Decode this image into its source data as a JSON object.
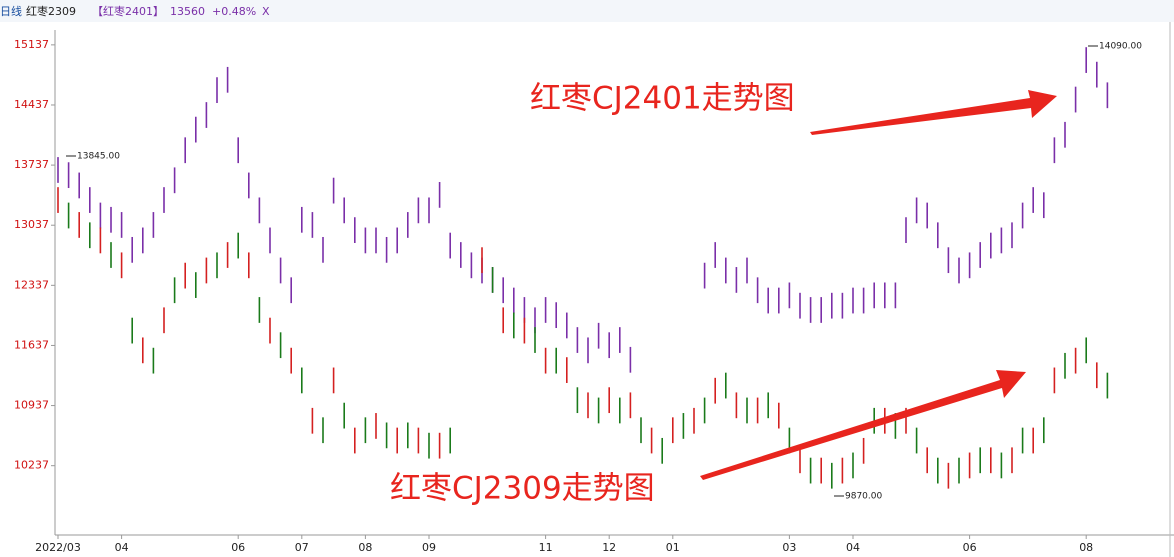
{
  "toolbar": {
    "period": "日线",
    "main": "红枣2309",
    "overlay": "【红枣2401】",
    "price": "13560",
    "change": "+0.48%",
    "close": "X"
  },
  "chart_data": {
    "type": "ohlc",
    "annotations": [
      "红枣CJ2401走势图",
      "红枣CJ2309走势图",
      "14090.00",
      "13845.00",
      "9870.00"
    ],
    "categories": [
      "2022/03",
      null,
      null,
      null,
      null,
      null,
      "04",
      null,
      null,
      null,
      null,
      null,
      null,
      null,
      null,
      null,
      null,
      "06",
      null,
      null,
      null,
      null,
      null,
      "07",
      null,
      null,
      null,
      null,
      null,
      "08",
      null,
      null,
      null,
      null,
      null,
      "09",
      null,
      null,
      null,
      null,
      null,
      null,
      null,
      null,
      null,
      null,
      "11",
      null,
      null,
      null,
      null,
      null,
      "12",
      null,
      null,
      null,
      null,
      null,
      "01",
      null,
      null,
      null,
      null,
      null,
      null,
      null,
      null,
      null,
      null,
      "03",
      null,
      null,
      null,
      null,
      null,
      "04",
      null,
      null,
      null,
      null,
      null,
      null,
      null,
      null,
      null,
      null,
      "06",
      null,
      null,
      null,
      null,
      null,
      null,
      null,
      null,
      null,
      null,
      "08",
      null,
      null
    ],
    "series": [
      {
        "color": "#7a2fa8",
        "high": [
          13830,
          13770,
          13650,
          13480,
          13300,
          13250,
          13190,
          12900,
          13010,
          13190,
          13480,
          13710,
          14060,
          14300,
          14470,
          14760,
          14880,
          14060,
          13650,
          13360,
          13010,
          12660,
          12430,
          13250,
          13190,
          12900,
          13590,
          13360,
          13130,
          13010,
          13010,
          12900,
          13010,
          13190,
          13360,
          13360,
          13540,
          12950,
          12840,
          12720,
          12660,
          12550,
          12430,
          12310,
          12200,
          12080,
          12200,
          12140,
          12020,
          11850,
          11730,
          11900,
          11790,
          11850,
          11620,
          null,
          null,
          null,
          null,
          null,
          null,
          12600,
          12840,
          12660,
          12550,
          12660,
          12430,
          12310,
          12310,
          12370,
          12250,
          12200,
          12200,
          12250,
          12250,
          12310,
          12310,
          12370,
          12370,
          12370,
          13130,
          13360,
          13300,
          13070,
          12780,
          12660,
          12720,
          12840,
          12950,
          13010,
          13070,
          13300,
          13480,
          13420,
          14060,
          14240,
          14650,
          15110,
          14940,
          14700
        ],
        "low": [
          13530,
          13470,
          13350,
          13180,
          13000,
          12950,
          12890,
          12600,
          12710,
          12890,
          13180,
          13410,
          13760,
          14000,
          14170,
          14460,
          14580,
          13760,
          13350,
          13060,
          12710,
          12360,
          12130,
          12950,
          12890,
          12600,
          13290,
          13060,
          12830,
          12710,
          12710,
          12600,
          12710,
          12890,
          13060,
          13060,
          13240,
          12650,
          12540,
          12420,
          12360,
          12250,
          12130,
          12010,
          11900,
          11780,
          11900,
          11840,
          11720,
          11550,
          11430,
          11600,
          11490,
          11550,
          11320,
          null,
          null,
          null,
          null,
          null,
          null,
          12300,
          12540,
          12360,
          12250,
          12360,
          12130,
          12010,
          12010,
          12070,
          11950,
          11900,
          11900,
          11950,
          11950,
          12010,
          12010,
          12070,
          12070,
          12070,
          12830,
          13060,
          13000,
          12770,
          12480,
          12360,
          12420,
          12540,
          12650,
          12710,
          12770,
          13000,
          13180,
          13120,
          13760,
          13940,
          14350,
          14810,
          14640,
          14400
        ]
      },
      {
        "colors": [
          "#d42020",
          "#1a7a1a"
        ],
        "high": [
          13480,
          13300,
          13190,
          13070,
          13010,
          12840,
          12720,
          11960,
          11730,
          11610,
          12080,
          12430,
          12600,
          12490,
          12660,
          12720,
          12840,
          12950,
          12720,
          12200,
          11960,
          11790,
          11610,
          11380,
          10910,
          10800,
          11380,
          10970,
          10680,
          10800,
          10850,
          10740,
          10680,
          10740,
          10680,
          10620,
          10620,
          10680,
          null,
          null,
          12780,
          12550,
          12080,
          12020,
          11960,
          11850,
          11610,
          11610,
          11500,
          11150,
          11090,
          11030,
          11150,
          11030,
          11090,
          10800,
          10680,
          10560,
          10800,
          10850,
          10910,
          11030,
          11260,
          11320,
          11090,
          11030,
          11030,
          11090,
          10970,
          10680,
          10450,
          10330,
          10330,
          10270,
          10330,
          10390,
          10560,
          10910,
          10910,
          10850,
          10910,
          10680,
          10450,
          10330,
          10270,
          10330,
          10390,
          10450,
          10450,
          10390,
          10450,
          10680,
          10680,
          10800,
          11380,
          11550,
          11610,
          11730,
          11440,
          11320
        ],
        "low": [
          13180,
          13000,
          12890,
          12770,
          12710,
          12540,
          12420,
          11660,
          11430,
          11310,
          11780,
          12130,
          12300,
          12190,
          12360,
          12420,
          12540,
          12650,
          12420,
          11900,
          11660,
          11490,
          11310,
          11080,
          10610,
          10500,
          11080,
          10670,
          10380,
          10500,
          10550,
          10440,
          10380,
          10440,
          10380,
          10320,
          10320,
          10380,
          null,
          null,
          12480,
          12250,
          11780,
          11720,
          11660,
          11550,
          11310,
          11310,
          11200,
          10850,
          10790,
          10730,
          10850,
          10730,
          10790,
          10500,
          10380,
          10260,
          10500,
          10550,
          10610,
          10730,
          10960,
          11020,
          10790,
          10730,
          10730,
          10790,
          10670,
          10380,
          10150,
          10030,
          10030,
          9970,
          10030,
          10090,
          10260,
          10610,
          10610,
          10550,
          10610,
          10380,
          10150,
          10030,
          9970,
          10030,
          10090,
          10150,
          10150,
          10090,
          10150,
          10380,
          10380,
          10500,
          11080,
          11250,
          11310,
          11430,
          11140,
          11020
        ]
      }
    ],
    "ylim": [
      9430,
      15310
    ],
    "yticks": [
      10237,
      10937,
      11637,
      12337,
      13037,
      13737,
      14437,
      15137
    ],
    "tick_color": "#d01010"
  }
}
